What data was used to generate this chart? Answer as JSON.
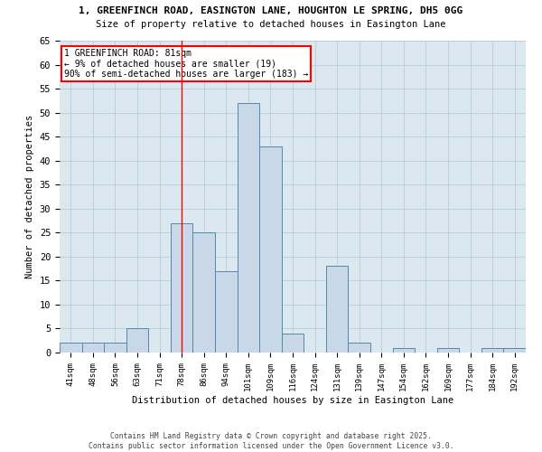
{
  "title_line1": "1, GREENFINCH ROAD, EASINGTON LANE, HOUGHTON LE SPRING, DH5 0GG",
  "title_line2": "Size of property relative to detached houses in Easington Lane",
  "xlabel": "Distribution of detached houses by size in Easington Lane",
  "ylabel": "Number of detached properties",
  "bin_labels": [
    "41sqm",
    "48sqm",
    "56sqm",
    "63sqm",
    "71sqm",
    "78sqm",
    "86sqm",
    "94sqm",
    "101sqm",
    "109sqm",
    "116sqm",
    "124sqm",
    "131sqm",
    "139sqm",
    "147sqm",
    "154sqm",
    "162sqm",
    "169sqm",
    "177sqm",
    "184sqm",
    "192sqm"
  ],
  "bar_values": [
    2,
    2,
    2,
    5,
    0,
    27,
    25,
    17,
    52,
    43,
    4,
    0,
    18,
    2,
    0,
    1,
    0,
    1,
    0,
    1,
    1
  ],
  "bar_color": "#c8d8e8",
  "bar_edge_color": "#5588aa",
  "vline_x_index": 5,
  "vline_color": "red",
  "annotation_text": "1 GREENFINCH ROAD: 81sqm\n← 9% of detached houses are smaller (19)\n90% of semi-detached houses are larger (183) →",
  "annotation_box_color": "white",
  "annotation_box_edge_color": "red",
  "ylim": [
    0,
    65
  ],
  "yticks": [
    0,
    5,
    10,
    15,
    20,
    25,
    30,
    35,
    40,
    45,
    50,
    55,
    60,
    65
  ],
  "grid_color": "#b8ccd8",
  "bg_color": "#dce8f0",
  "footer_line1": "Contains HM Land Registry data © Crown copyright and database right 2025.",
  "footer_line2": "Contains public sector information licensed under the Open Government Licence v3.0."
}
